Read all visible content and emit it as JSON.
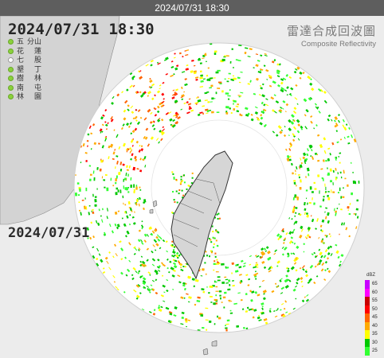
{
  "title_bar": {
    "text": "2024/07/31 18:30"
  },
  "overlay": {
    "date": "2024/07/31",
    "time": "18:30",
    "bottom_date": "2024/07/31"
  },
  "product": {
    "name_zh": "雷達合成回波圖",
    "name_en": "Composite Reflectivity"
  },
  "stations": [
    {
      "left": "五分",
      "right": "山",
      "status": "on"
    },
    {
      "left": "花",
      "right": "蓮",
      "status": "on"
    },
    {
      "left": "七",
      "right": "股",
      "status": "off"
    },
    {
      "left": "墾",
      "right": "丁",
      "status": "on"
    },
    {
      "left": "樹",
      "right": "林",
      "status": "on"
    },
    {
      "left": "南",
      "right": "屯",
      "status": "on"
    },
    {
      "left": "林",
      "right": "園",
      "status": "on"
    }
  ],
  "legend": {
    "unit": "dBZ",
    "levels": [
      {
        "label": "65",
        "color": "#c800ff"
      },
      {
        "label": "60",
        "color": "#ff00ff"
      },
      {
        "label": "55",
        "color": "#c80000"
      },
      {
        "label": "50",
        "color": "#ff0000"
      },
      {
        "label": "45",
        "color": "#ff6400"
      },
      {
        "label": "40",
        "color": "#ffaa00"
      },
      {
        "label": "35",
        "color": "#ffff00"
      },
      {
        "label": "30",
        "color": "#00c800"
      },
      {
        "label": "25",
        "color": "#32ff32"
      }
    ]
  },
  "colors": {
    "land": "#d3d3d3",
    "sea": "#ffffff",
    "outer": "#ededed",
    "coast": "#333333"
  }
}
